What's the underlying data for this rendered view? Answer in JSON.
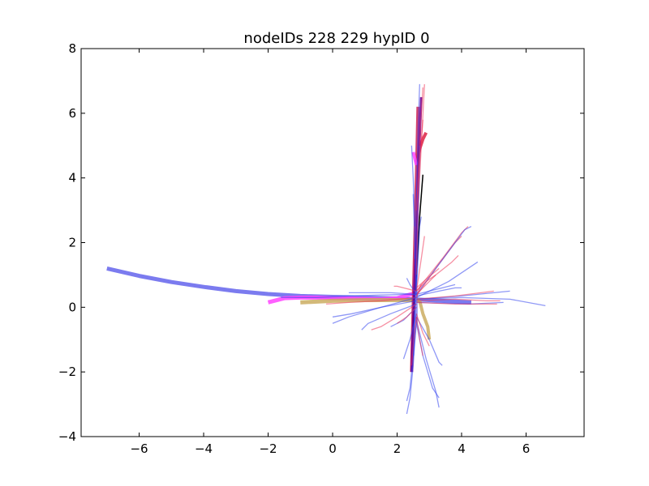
{
  "chart_data": {
    "type": "line",
    "title": "nodeIDs 228 229 hypID 0",
    "xlabel": "",
    "ylabel": "",
    "xlim": [
      -7.8,
      7.8
    ],
    "ylim": [
      -4,
      8
    ],
    "xticks": [
      -6,
      -4,
      -2,
      0,
      2,
      4,
      6
    ],
    "yticks": [
      -4,
      -2,
      0,
      2,
      4,
      6,
      8
    ],
    "grid": false,
    "series": [
      {
        "color": "#7b7bef",
        "width": 5,
        "opacity": 1.0,
        "x": [
          -7.0,
          -6.0,
          -5.0,
          -4.0,
          -3.0,
          -2.0,
          -1.0,
          0.0,
          1.0,
          2.0,
          3.0,
          4.3
        ],
        "y": [
          1.2,
          0.97,
          0.78,
          0.63,
          0.5,
          0.41,
          0.35,
          0.32,
          0.3,
          0.27,
          0.22,
          0.15
        ]
      },
      {
        "color": "#ff44ff",
        "width": 5,
        "opacity": 0.85,
        "x": [
          -2.0,
          -1.5,
          -1.0,
          -0.5,
          0.0,
          0.5,
          1.0,
          1.5,
          2.0,
          2.6
        ],
        "y": [
          0.15,
          0.28,
          0.3,
          0.3,
          0.28,
          0.27,
          0.26,
          0.25,
          0.28,
          0.45
        ]
      },
      {
        "color": "#c8a858",
        "width": 5,
        "opacity": 0.8,
        "x": [
          -1.0,
          0.0,
          1.0,
          2.0,
          2.7
        ],
        "y": [
          0.15,
          0.2,
          0.22,
          0.22,
          0.22
        ]
      },
      {
        "color": "#c8a858",
        "width": 4,
        "opacity": 0.8,
        "x": [
          2.7,
          2.8,
          2.95,
          3.0
        ],
        "y": [
          0.2,
          -0.2,
          -0.6,
          -1.0
        ]
      },
      {
        "color": "#cc2255",
        "width": 4,
        "opacity": 0.85,
        "x": [
          2.45,
          2.5,
          2.55,
          2.6,
          2.65
        ],
        "y": [
          -2.0,
          0.0,
          2.0,
          4.0,
          6.2
        ]
      },
      {
        "color": "#dd2244",
        "width": 4,
        "opacity": 0.85,
        "x": [
          2.6,
          2.7,
          2.8,
          2.9
        ],
        "y": [
          4.5,
          4.9,
          5.2,
          5.4
        ]
      },
      {
        "color": "#ff44ff",
        "width": 4,
        "opacity": 0.85,
        "x": [
          2.5,
          2.55,
          2.6
        ],
        "y": [
          4.8,
          4.6,
          4.4
        ]
      },
      {
        "color": "#000000",
        "width": 1.5,
        "opacity": 1.0,
        "x": [
          2.5,
          2.6,
          2.7,
          2.8
        ],
        "y": [
          -0.6,
          1.0,
          2.8,
          4.1
        ]
      },
      {
        "color": "#660099",
        "width": 3,
        "opacity": 0.85,
        "x": [
          2.45,
          2.55,
          2.65,
          2.75
        ],
        "y": [
          -2.0,
          1.0,
          4.0,
          6.5
        ]
      },
      {
        "color": "#3344ee",
        "width": 2,
        "opacity": 0.7,
        "x": [
          2.5,
          2.6,
          2.65,
          2.7
        ],
        "y": [
          -1.5,
          1.0,
          3.0,
          5.0
        ]
      },
      {
        "color": "#7b7bef",
        "width": 3,
        "opacity": 0.8,
        "x": [
          2.6,
          2.6,
          2.6
        ],
        "y": [
          0.5,
          0.0,
          -0.5
        ]
      },
      {
        "color": "#ee3355",
        "width": 1.3,
        "opacity": 0.55,
        "x": [
          2.6,
          3.2,
          3.8,
          4.0
        ],
        "y": [
          0.35,
          1.2,
          2.0,
          2.2
        ]
      },
      {
        "color": "#ee3355",
        "width": 1.3,
        "opacity": 0.55,
        "x": [
          2.6,
          3.4,
          4.0,
          4.2
        ],
        "y": [
          0.5,
          1.5,
          2.3,
          2.5
        ]
      },
      {
        "color": "#3344ee",
        "width": 1.3,
        "opacity": 0.55,
        "x": [
          2.6,
          3.5,
          4.1,
          4.3
        ],
        "y": [
          0.4,
          1.6,
          2.4,
          2.5
        ]
      },
      {
        "color": "#3344ee",
        "width": 1.3,
        "opacity": 0.55,
        "x": [
          2.6,
          3.6,
          4.2,
          4.5
        ],
        "y": [
          0.3,
          0.8,
          1.2,
          1.4
        ]
      },
      {
        "color": "#ee3355",
        "width": 1.3,
        "opacity": 0.55,
        "x": [
          2.6,
          3.2,
          3.7,
          3.9
        ],
        "y": [
          0.4,
          1.0,
          1.4,
          1.6
        ]
      },
      {
        "color": "#3344ee",
        "width": 1.3,
        "opacity": 0.55,
        "x": [
          2.6,
          3.3,
          3.8,
          4.0
        ],
        "y": [
          0.35,
          0.5,
          0.6,
          0.6
        ]
      },
      {
        "color": "#3344ee",
        "width": 1.3,
        "opacity": 0.55,
        "x": [
          2.6,
          4.0,
          5.5,
          6.6
        ],
        "y": [
          0.25,
          0.3,
          0.25,
          0.05
        ]
      },
      {
        "color": "#3344ee",
        "width": 1.3,
        "opacity": 0.55,
        "x": [
          2.6,
          4.0,
          5.0,
          5.5
        ],
        "y": [
          0.25,
          0.35,
          0.45,
          0.5
        ]
      },
      {
        "color": "#ee3355",
        "width": 1.3,
        "opacity": 0.55,
        "x": [
          2.6,
          3.8,
          4.6,
          5.0
        ],
        "y": [
          0.25,
          0.35,
          0.45,
          0.5
        ]
      },
      {
        "color": "#ee3355",
        "width": 1.3,
        "opacity": 0.55,
        "x": [
          2.6,
          3.8,
          4.8,
          5.2
        ],
        "y": [
          0.2,
          0.25,
          0.2,
          0.2
        ]
      },
      {
        "color": "#3344ee",
        "width": 1.3,
        "opacity": 0.55,
        "x": [
          2.6,
          4.2,
          5.3
        ],
        "y": [
          0.15,
          0.1,
          0.15
        ]
      },
      {
        "color": "#ee3355",
        "width": 1.3,
        "opacity": 0.55,
        "x": [
          2.6,
          3.8,
          4.6,
          5.1
        ],
        "y": [
          0.15,
          0.1,
          0.1,
          0.1
        ]
      },
      {
        "color": "#3344ee",
        "width": 1.3,
        "opacity": 0.55,
        "x": [
          2.6,
          3.2,
          3.6,
          3.8
        ],
        "y": [
          0.4,
          0.55,
          0.65,
          0.7
        ]
      },
      {
        "color": "#ee3355",
        "width": 1.3,
        "opacity": 0.55,
        "x": [
          2.6,
          3.0,
          3.3
        ],
        "y": [
          0.6,
          0.95,
          1.2
        ]
      },
      {
        "color": "#ee3355",
        "width": 1.3,
        "opacity": 0.55,
        "x": [
          2.6,
          2.9,
          3.2
        ],
        "y": [
          0.5,
          0.8,
          1.0
        ]
      },
      {
        "color": "#3344ee",
        "width": 1.3,
        "opacity": 0.55,
        "x": [
          2.6,
          1.5,
          0.5,
          0.0
        ],
        "y": [
          0.2,
          0.0,
          -0.3,
          -0.5
        ]
      },
      {
        "color": "#3344ee",
        "width": 1.3,
        "opacity": 0.55,
        "x": [
          2.6,
          1.8,
          1.1,
          0.9
        ],
        "y": [
          0.1,
          -0.2,
          -0.5,
          -0.7
        ]
      },
      {
        "color": "#ee3355",
        "width": 1.3,
        "opacity": 0.55,
        "x": [
          2.6,
          2.0,
          1.5,
          1.2
        ],
        "y": [
          0.1,
          -0.3,
          -0.6,
          -0.7
        ]
      },
      {
        "color": "#3344ee",
        "width": 1.3,
        "opacity": 0.55,
        "x": [
          2.6,
          2.2,
          1.8
        ],
        "y": [
          0.0,
          -0.4,
          -0.6
        ]
      },
      {
        "color": "#ee3355",
        "width": 1.3,
        "opacity": 0.55,
        "x": [
          2.6,
          2.3,
          2.0
        ],
        "y": [
          0.0,
          -0.3,
          -0.5
        ]
      },
      {
        "color": "#3344ee",
        "width": 1.3,
        "opacity": 0.55,
        "x": [
          2.6,
          1.5,
          0.5,
          -0.5,
          -1.6
        ],
        "y": [
          0.4,
          0.38,
          0.35,
          0.3,
          0.3
        ]
      },
      {
        "color": "#3344ee",
        "width": 1.3,
        "opacity": 0.55,
        "x": [
          2.6,
          1.8,
          1.2,
          0.5
        ],
        "y": [
          0.4,
          0.45,
          0.45,
          0.45
        ]
      },
      {
        "color": "#ee3355",
        "width": 1.3,
        "opacity": 0.55,
        "x": [
          2.6,
          2.2,
          2.0,
          1.9
        ],
        "y": [
          0.5,
          0.6,
          0.65,
          0.65
        ]
      },
      {
        "color": "#ee3355",
        "width": 1.3,
        "opacity": 0.55,
        "x": [
          2.6,
          1.5,
          0.5,
          -0.2
        ],
        "y": [
          0.3,
          0.2,
          0.15,
          0.1
        ]
      },
      {
        "color": "#3344ee",
        "width": 1.3,
        "opacity": 0.55,
        "x": [
          2.6,
          1.5,
          0.6,
          0.0
        ],
        "y": [
          0.3,
          0.0,
          -0.2,
          -0.3
        ]
      },
      {
        "color": "#3344ee",
        "width": 1.3,
        "opacity": 0.55,
        "x": [
          2.6,
          2.5,
          2.4,
          2.3
        ],
        "y": [
          -0.5,
          -1.5,
          -2.5,
          -2.9
        ]
      },
      {
        "color": "#3344ee",
        "width": 1.3,
        "opacity": 0.55,
        "x": [
          2.6,
          2.5,
          2.4,
          2.3
        ],
        "y": [
          -0.3,
          -1.8,
          -2.8,
          -3.3
        ]
      },
      {
        "color": "#3344ee",
        "width": 1.3,
        "opacity": 0.55,
        "x": [
          2.6,
          2.8,
          3.1,
          3.3
        ],
        "y": [
          -0.5,
          -1.5,
          -2.5,
          -2.8
        ]
      },
      {
        "color": "#3344ee",
        "width": 1.3,
        "opacity": 0.55,
        "x": [
          2.6,
          2.9,
          3.2,
          3.3
        ],
        "y": [
          -0.4,
          -1.6,
          -2.6,
          -3.1
        ]
      },
      {
        "color": "#3344ee",
        "width": 1.3,
        "opacity": 0.55,
        "x": [
          2.6,
          3.0,
          3.3,
          3.4
        ],
        "y": [
          -0.3,
          -1.0,
          -1.7,
          -1.8
        ]
      },
      {
        "color": "#ee3355",
        "width": 1.3,
        "opacity": 0.55,
        "x": [
          2.6,
          2.7,
          2.8
        ],
        "y": [
          -0.3,
          -1.0,
          -1.5
        ]
      },
      {
        "color": "#3344ee",
        "width": 1.3,
        "opacity": 0.55,
        "x": [
          2.6,
          2.4,
          2.2
        ],
        "y": [
          -0.2,
          -1.0,
          -1.6
        ]
      },
      {
        "color": "#ee3355",
        "width": 1.3,
        "opacity": 0.55,
        "x": [
          2.6,
          2.8,
          3.0
        ],
        "y": [
          -0.2,
          -0.8,
          -1.2
        ]
      },
      {
        "color": "#ee3355",
        "width": 1.3,
        "opacity": 0.55,
        "x": [
          2.6,
          2.5,
          2.45
        ],
        "y": [
          -0.3,
          -1.2,
          -1.8
        ]
      },
      {
        "color": "#ee3355",
        "width": 1.3,
        "opacity": 0.55,
        "x": [
          2.55,
          2.65,
          2.75,
          2.8
        ],
        "y": [
          2.0,
          4.0,
          6.0,
          6.8
        ]
      },
      {
        "color": "#ee3355",
        "width": 1.3,
        "opacity": 0.55,
        "x": [
          2.6,
          2.65,
          2.75,
          2.85
        ],
        "y": [
          1.0,
          3.0,
          5.0,
          6.9
        ]
      },
      {
        "color": "#3344ee",
        "width": 1.3,
        "opacity": 0.55,
        "x": [
          2.55,
          2.6,
          2.65,
          2.7
        ],
        "y": [
          1.5,
          3.5,
          5.5,
          6.9
        ]
      },
      {
        "color": "#3344ee",
        "width": 1.3,
        "opacity": 0.55,
        "x": [
          2.55,
          2.5,
          2.45
        ],
        "y": [
          2.5,
          4.0,
          5.0
        ]
      },
      {
        "color": "#ee3355",
        "width": 1.3,
        "opacity": 0.55,
        "x": [
          2.6,
          2.7,
          2.8
        ],
        "y": [
          3.0,
          4.5,
          5.8
        ]
      },
      {
        "color": "#3344ee",
        "width": 1.3,
        "opacity": 0.55,
        "x": [
          2.6,
          2.55,
          2.5
        ],
        "y": [
          0.5,
          2.0,
          3.5
        ]
      },
      {
        "color": "#3344ee",
        "width": 1.3,
        "opacity": 0.55,
        "x": [
          2.6,
          2.65,
          2.7,
          2.75
        ],
        "y": [
          0.4,
          1.5,
          2.5,
          2.8
        ]
      },
      {
        "color": "#ee3355",
        "width": 1.3,
        "opacity": 0.55,
        "x": [
          2.6,
          2.75,
          2.85
        ],
        "y": [
          0.5,
          1.5,
          2.2
        ]
      },
      {
        "color": "#3344ee",
        "width": 1.3,
        "opacity": 0.55,
        "x": [
          2.6,
          2.4,
          2.3
        ],
        "y": [
          0.4,
          0.7,
          0.9
        ]
      },
      {
        "color": "#ee3355",
        "width": 1.3,
        "opacity": 0.55,
        "x": [
          2.6,
          2.7,
          2.75
        ],
        "y": [
          0.3,
          0.6,
          0.7
        ]
      }
    ]
  }
}
